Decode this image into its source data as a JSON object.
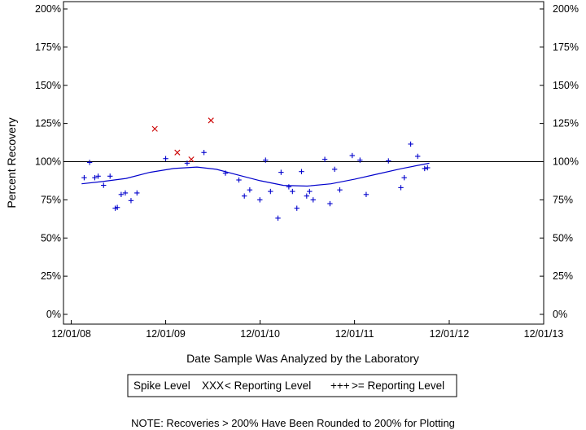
{
  "chart_data": {
    "type": "scatter",
    "xlabel": "Date Sample Was Analyzed by the Laboratory",
    "ylabel": "Percent Recovery",
    "note": "NOTE: Recoveries > 200% Have Been Rounded to 200% for Plotting",
    "ylim": [
      0,
      200
    ],
    "xlim": [
      "2008-11-01",
      "2013-12-01"
    ],
    "y_ticks": [
      {
        "value": 0,
        "label": "0%"
      },
      {
        "value": 25,
        "label": "25%"
      },
      {
        "value": 50,
        "label": "50%"
      },
      {
        "value": 75,
        "label": "75%"
      },
      {
        "value": 100,
        "label": "100%"
      },
      {
        "value": 125,
        "label": "125%"
      },
      {
        "value": 150,
        "label": "150%"
      },
      {
        "value": 175,
        "label": "175%"
      },
      {
        "value": 200,
        "label": "200%"
      }
    ],
    "x_ticks": [
      {
        "value": "2008-12-01",
        "label": "12/01/08"
      },
      {
        "value": "2009-12-01",
        "label": "12/01/09"
      },
      {
        "value": "2010-12-01",
        "label": "12/01/10"
      },
      {
        "value": "2011-12-01",
        "label": "12/01/11"
      },
      {
        "value": "2012-12-01",
        "label": "12/01/12"
      },
      {
        "value": "2013-12-01",
        "label": "12/01/13"
      }
    ],
    "reference_line": 100,
    "legend": {
      "title": "Spike Level",
      "position": "bottom-center",
      "entries": [
        {
          "marker": "XXX",
          "label": "< Reporting Level",
          "color": "#cc0000"
        },
        {
          "marker": "+++",
          "label": ">= Reporting Level",
          "color": "#0000cc"
        }
      ]
    },
    "series": [
      {
        "name": "< Reporting Level",
        "marker": "x",
        "color": "#cc0000",
        "points": [
          {
            "x": "2009-10-20",
            "y": 121.5
          },
          {
            "x": "2010-01-15",
            "y": 106
          },
          {
            "x": "2010-03-10",
            "y": 101.5
          },
          {
            "x": "2010-05-25",
            "y": 127
          }
        ]
      },
      {
        "name": ">= Reporting Level",
        "marker": "+",
        "color": "#0000cc",
        "points": [
          {
            "x": "2009-01-20",
            "y": 89.5
          },
          {
            "x": "2009-02-10",
            "y": 99.5
          },
          {
            "x": "2009-03-02",
            "y": 89.5
          },
          {
            "x": "2009-03-15",
            "y": 90.5
          },
          {
            "x": "2009-04-05",
            "y": 84.5
          },
          {
            "x": "2009-04-30",
            "y": 90.5
          },
          {
            "x": "2009-05-20",
            "y": 69.5
          },
          {
            "x": "2009-05-28",
            "y": 70
          },
          {
            "x": "2009-06-12",
            "y": 78.5
          },
          {
            "x": "2009-06-28",
            "y": 79.5
          },
          {
            "x": "2009-07-20",
            "y": 74.5
          },
          {
            "x": "2009-08-12",
            "y": 79.5
          },
          {
            "x": "2009-12-01",
            "y": 102
          },
          {
            "x": "2010-02-22",
            "y": 99
          },
          {
            "x": "2010-04-28",
            "y": 106
          },
          {
            "x": "2010-07-20",
            "y": 92.5
          },
          {
            "x": "2010-09-10",
            "y": 88
          },
          {
            "x": "2010-10-01",
            "y": 77.5
          },
          {
            "x": "2010-10-22",
            "y": 81.5
          },
          {
            "x": "2010-11-30",
            "y": 75
          },
          {
            "x": "2010-12-22",
            "y": 101
          },
          {
            "x": "2011-01-10",
            "y": 80.5
          },
          {
            "x": "2011-02-08",
            "y": 63
          },
          {
            "x": "2011-02-20",
            "y": 93
          },
          {
            "x": "2011-03-22",
            "y": 83.5
          },
          {
            "x": "2011-04-05",
            "y": 80.5
          },
          {
            "x": "2011-04-22",
            "y": 69.5
          },
          {
            "x": "2011-05-10",
            "y": 93.5
          },
          {
            "x": "2011-05-30",
            "y": 77.5
          },
          {
            "x": "2011-06-10",
            "y": 80.5
          },
          {
            "x": "2011-06-24",
            "y": 75
          },
          {
            "x": "2011-08-08",
            "y": 101.5
          },
          {
            "x": "2011-08-28",
            "y": 72.5
          },
          {
            "x": "2011-09-15",
            "y": 95
          },
          {
            "x": "2011-10-05",
            "y": 81.5
          },
          {
            "x": "2011-11-22",
            "y": 104
          },
          {
            "x": "2011-12-22",
            "y": 101
          },
          {
            "x": "2012-01-15",
            "y": 78.5
          },
          {
            "x": "2012-04-10",
            "y": 100.5
          },
          {
            "x": "2012-05-28",
            "y": 83
          },
          {
            "x": "2012-06-10",
            "y": 89.5
          },
          {
            "x": "2012-07-05",
            "y": 111.5
          },
          {
            "x": "2012-08-01",
            "y": 103.5
          },
          {
            "x": "2012-08-28",
            "y": 95.5
          },
          {
            "x": "2012-09-08",
            "y": 96
          }
        ]
      }
    ],
    "trend_line": [
      {
        "x": "2009-01-10",
        "y": 85.5
      },
      {
        "x": "2009-04-01",
        "y": 87
      },
      {
        "x": "2009-07-01",
        "y": 89
      },
      {
        "x": "2009-10-01",
        "y": 93
      },
      {
        "x": "2010-01-01",
        "y": 95.5
      },
      {
        "x": "2010-04-01",
        "y": 96.5
      },
      {
        "x": "2010-06-15",
        "y": 95
      },
      {
        "x": "2010-09-01",
        "y": 91.5
      },
      {
        "x": "2010-12-01",
        "y": 87.5
      },
      {
        "x": "2011-03-01",
        "y": 84.5
      },
      {
        "x": "2011-06-01",
        "y": 84
      },
      {
        "x": "2011-09-01",
        "y": 85.5
      },
      {
        "x": "2011-12-01",
        "y": 88.5
      },
      {
        "x": "2012-03-01",
        "y": 92
      },
      {
        "x": "2012-06-01",
        "y": 95.5
      },
      {
        "x": "2012-09-15",
        "y": 99
      }
    ]
  }
}
